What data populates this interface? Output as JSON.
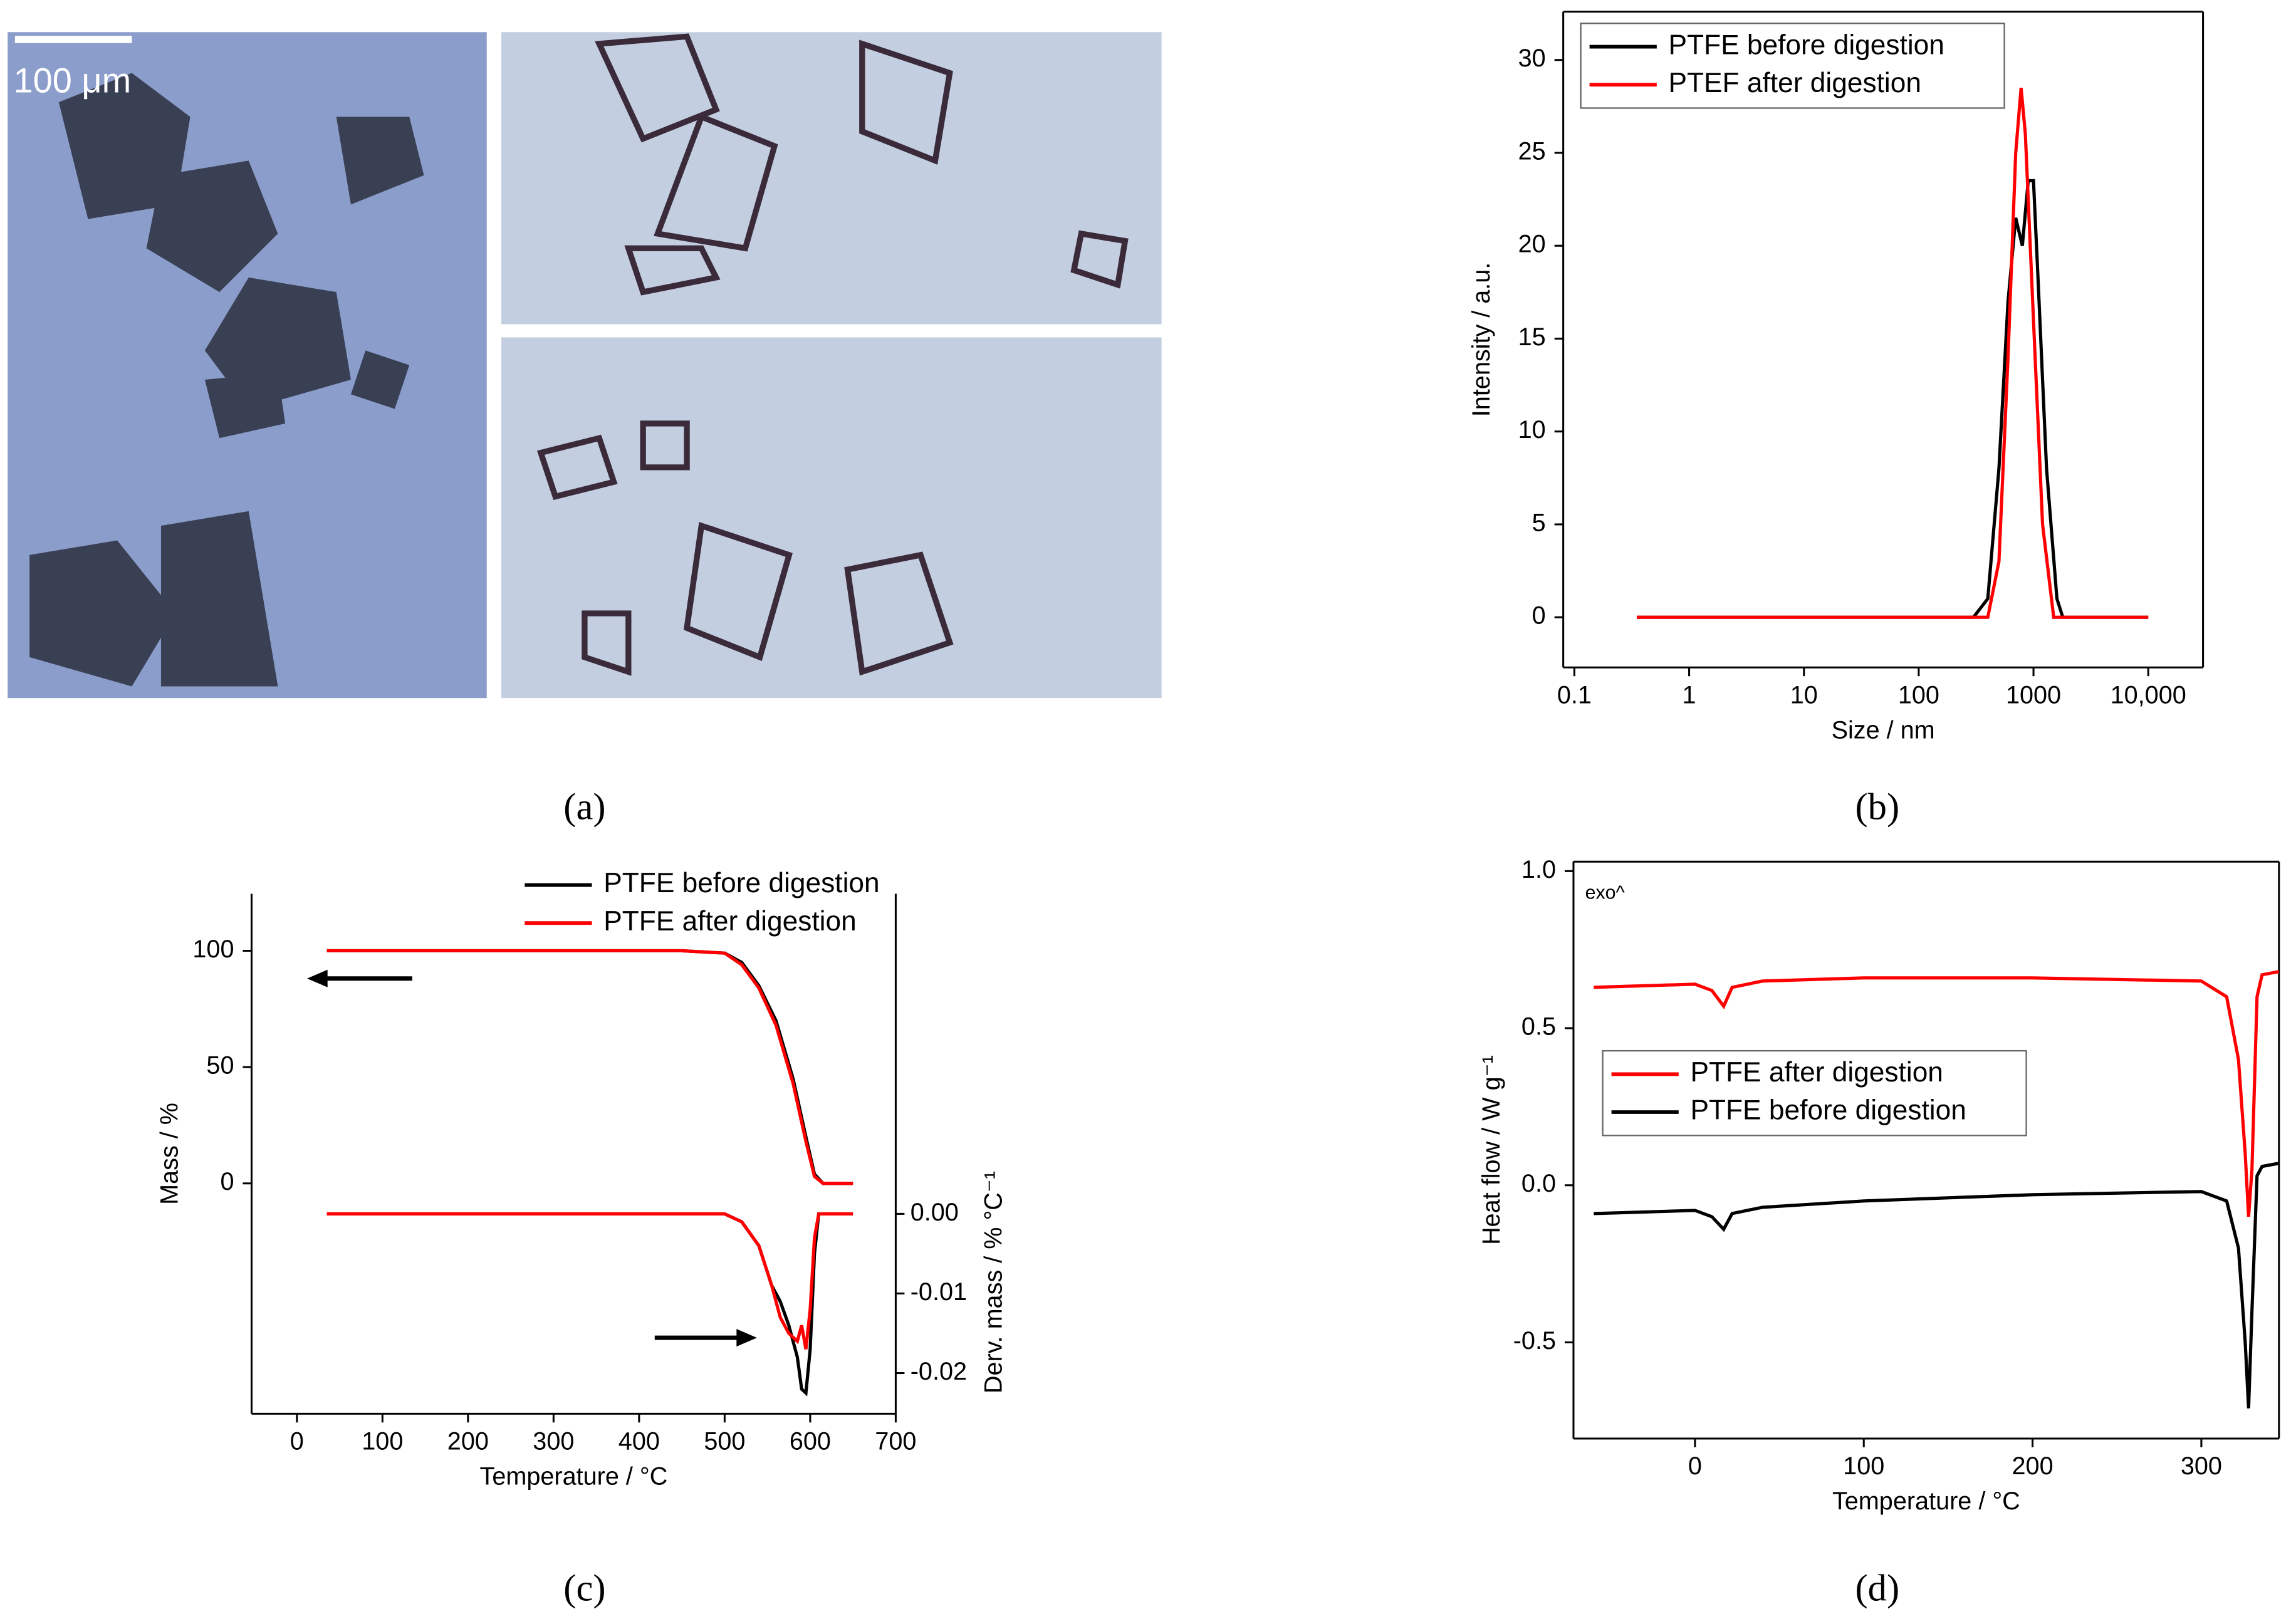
{
  "micrograph": {
    "scale_bar": "100 μm"
  },
  "panel_labels": [
    "(a)",
    "(b)",
    "(c)",
    "(d)"
  ],
  "chart_data": [
    {
      "type": "line",
      "xlabel": "Size / nm",
      "ylabel": "Intensity / a.u.",
      "xscale": "log",
      "xlim": [
        0.08,
        30000
      ],
      "ylim": [
        -2.7,
        32.6
      ],
      "xticks": [
        0.1,
        1,
        10,
        100,
        1000,
        {
          "value": 10000,
          "label": "10,000"
        }
      ],
      "yticks": [
        0,
        5,
        10,
        15,
        20,
        25,
        30
      ],
      "legend": "upper left",
      "legend_frame": true,
      "series": [
        {
          "name": "PTFE before digestion",
          "color": "#000000",
          "x": [
            0.35,
            300,
            400,
            500,
            600,
            700,
            800,
            900,
            1000,
            1100,
            1300,
            1600,
            1800,
            10000
          ],
          "values": [
            0,
            0,
            1,
            8,
            17,
            21.5,
            20,
            23.5,
            23.5,
            18,
            8,
            1,
            0,
            0
          ]
        },
        {
          "name": "PTEF after digestion",
          "color": "#ff0000",
          "x": [
            0.35,
            400,
            500,
            600,
            700,
            780,
            850,
            1000,
            1200,
            1500,
            10000
          ],
          "values": [
            0,
            0,
            3,
            14,
            25,
            28.5,
            26,
            16,
            5,
            0,
            0
          ]
        }
      ]
    },
    {
      "type": "line",
      "xlabel": "Temperature / °C",
      "ylabel": "Mass / %",
      "y2label": "Derv.  mass / % °C⁻¹",
      "xlim": [
        -53,
        700
      ],
      "ylim": [
        -99,
        124.5
      ],
      "y2lim": [
        -0.0251,
        0.0402
      ],
      "xticks": [
        0,
        100,
        200,
        300,
        400,
        500,
        600,
        700
      ],
      "yticks": [
        0,
        50,
        100
      ],
      "y2ticks": [
        {
          "value": 0,
          "label": "0.00"
        },
        {
          "value": -0.01,
          "label": "-0.01"
        },
        {
          "value": -0.02,
          "label": "-0.02"
        }
      ],
      "legend": "upper right",
      "legend_frame": false,
      "series": [
        {
          "name": "PTFE  before digestion",
          "color": "#000000",
          "x": [
            35,
            450,
            500,
            520,
            540,
            560,
            580,
            595,
            605,
            615,
            650
          ],
          "values": [
            100,
            100,
            99,
            95,
            85,
            70,
            45,
            20,
            4,
            0,
            0
          ]
        },
        {
          "name": "PTFE   after digestion",
          "color": "#ff0000",
          "x": [
            35,
            450,
            500,
            520,
            540,
            560,
            580,
            595,
            605,
            615,
            650
          ],
          "values": [
            100,
            100,
            99,
            94,
            84,
            68,
            43,
            18,
            3,
            0,
            0
          ]
        },
        {
          "color": "#000000",
          "axis": "y2",
          "x": [
            35,
            500,
            520,
            540,
            555,
            565,
            575,
            585,
            590,
            595,
            600,
            605,
            610,
            650
          ],
          "values": [
            0,
            0,
            -0.001,
            -0.004,
            -0.009,
            -0.011,
            -0.014,
            -0.018,
            -0.022,
            -0.0225,
            -0.017,
            -0.005,
            0,
            0
          ]
        },
        {
          "color": "#ff0000",
          "axis": "y2",
          "x": [
            35,
            500,
            520,
            540,
            555,
            565,
            575,
            585,
            590,
            595,
            600,
            605,
            610,
            650
          ],
          "values": [
            0,
            0,
            -0.001,
            -0.004,
            -0.009,
            -0.013,
            -0.015,
            -0.016,
            -0.014,
            -0.017,
            -0.012,
            -0.003,
            0,
            0
          ]
        }
      ]
    },
    {
      "type": "line",
      "xlabel": "Temperature / °C",
      "ylabel": "Heat flow / W g⁻¹",
      "annotation": "exo^",
      "xlim": [
        -72,
        346
      ],
      "ylim": [
        -0.806,
        1.03
      ],
      "xticks": [
        0,
        100,
        200,
        300
      ],
      "yticks": [
        {
          "value": 1,
          "label": "1.0"
        },
        0.5,
        {
          "value": 0,
          "label": "0.0"
        },
        -0.5
      ],
      "legend": "center left",
      "legend_frame": true,
      "series": [
        {
          "name": "PTFE after digestion",
          "color": "#ff0000",
          "x": [
            -60,
            0,
            10,
            17,
            22,
            40,
            100,
            200,
            300,
            315,
            322,
            326,
            328,
            330,
            333,
            336,
            346
          ],
          "values": [
            0.63,
            0.64,
            0.62,
            0.57,
            0.63,
            0.65,
            0.66,
            0.66,
            0.65,
            0.6,
            0.4,
            0.1,
            -0.1,
            0.05,
            0.6,
            0.67,
            0.68
          ]
        },
        {
          "name": "PTFE before digestion",
          "color": "#000000",
          "x": [
            -60,
            0,
            10,
            17,
            22,
            40,
            100,
            200,
            300,
            315,
            322,
            326,
            328,
            330,
            333,
            336,
            346
          ],
          "values": [
            -0.09,
            -0.08,
            -0.1,
            -0.14,
            -0.09,
            -0.07,
            -0.05,
            -0.03,
            -0.02,
            -0.05,
            -0.2,
            -0.5,
            -0.71,
            -0.4,
            0.03,
            0.06,
            0.07
          ]
        }
      ]
    }
  ]
}
